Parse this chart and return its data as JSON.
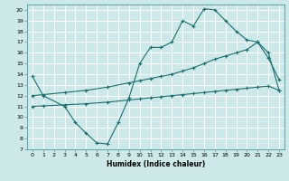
{
  "title": "",
  "xlabel": "Humidex (Indice chaleur)",
  "bg_color": "#cce8e8",
  "grid_color": "#ffffff",
  "line_color": "#1a7070",
  "xlim": [
    -0.5,
    23.5
  ],
  "ylim": [
    7,
    20.5
  ],
  "xticks": [
    0,
    1,
    2,
    3,
    4,
    5,
    6,
    7,
    8,
    9,
    10,
    11,
    12,
    13,
    14,
    15,
    16,
    17,
    18,
    19,
    20,
    21,
    22,
    23
  ],
  "yticks": [
    7,
    8,
    9,
    10,
    11,
    12,
    13,
    14,
    15,
    16,
    17,
    18,
    19,
    20
  ],
  "line1_x": [
    0,
    1,
    3,
    4,
    5,
    6,
    7,
    8,
    9,
    10,
    11,
    12,
    13,
    14,
    15,
    16,
    17,
    18,
    19,
    20,
    21,
    22,
    23
  ],
  "line1_y": [
    13.8,
    12.0,
    11.0,
    9.5,
    8.5,
    7.6,
    7.5,
    9.5,
    11.8,
    15.0,
    16.5,
    16.5,
    17.0,
    19.0,
    18.5,
    20.1,
    20.0,
    19.0,
    18.0,
    17.2,
    17.0,
    15.5,
    13.5
  ],
  "line2_x": [
    0,
    1,
    3,
    5,
    7,
    9,
    10,
    11,
    12,
    13,
    14,
    15,
    16,
    17,
    18,
    19,
    20,
    21,
    22,
    23
  ],
  "line2_y": [
    12.0,
    12.1,
    12.3,
    12.5,
    12.8,
    13.2,
    13.4,
    13.6,
    13.8,
    14.0,
    14.3,
    14.6,
    15.0,
    15.4,
    15.7,
    16.0,
    16.3,
    17.0,
    16.0,
    12.5
  ],
  "line3_x": [
    0,
    1,
    3,
    5,
    7,
    9,
    10,
    11,
    12,
    13,
    14,
    15,
    16,
    17,
    18,
    19,
    20,
    21,
    22,
    23
  ],
  "line3_y": [
    11.0,
    11.05,
    11.15,
    11.25,
    11.4,
    11.6,
    11.7,
    11.8,
    11.9,
    12.0,
    12.1,
    12.2,
    12.3,
    12.4,
    12.5,
    12.6,
    12.7,
    12.8,
    12.9,
    12.5
  ]
}
